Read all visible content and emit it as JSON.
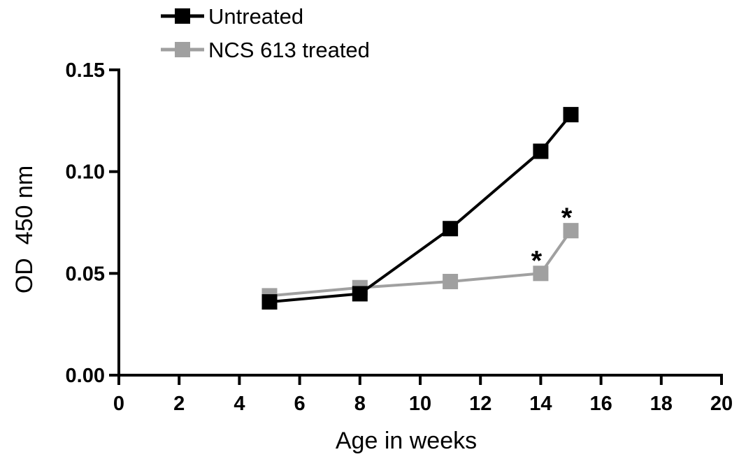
{
  "chart_data": {
    "type": "line",
    "xlabel": "Age in weeks",
    "ylabel": "OD  450 nm",
    "xlim": [
      0,
      20
    ],
    "ylim": [
      0,
      0.15
    ],
    "x_ticks": [
      "0",
      "2",
      "4",
      "6",
      "8",
      "10",
      "12",
      "14",
      "16",
      "18",
      "20"
    ],
    "y_ticks": [
      "0.00",
      "0.05",
      "0.10",
      "0.15"
    ],
    "grid": false,
    "legend_position": "top-left",
    "series": [
      {
        "name": "Untreated",
        "color": "#000000",
        "x": [
          5,
          8,
          11,
          14,
          15
        ],
        "y": [
          0.036,
          0.04,
          0.072,
          0.11,
          0.128
        ]
      },
      {
        "name": "NCS 613 treated",
        "color": "#a0a0a0",
        "x": [
          5,
          8,
          11,
          14,
          15
        ],
        "y": [
          0.039,
          0.043,
          0.046,
          0.05,
          0.071
        ]
      }
    ],
    "annotations": [
      {
        "text": "*",
        "x": 14,
        "y": 0.05,
        "series": "NCS 613 treated"
      },
      {
        "text": "*",
        "x": 15,
        "y": 0.071,
        "series": "NCS 613 treated"
      }
    ]
  }
}
